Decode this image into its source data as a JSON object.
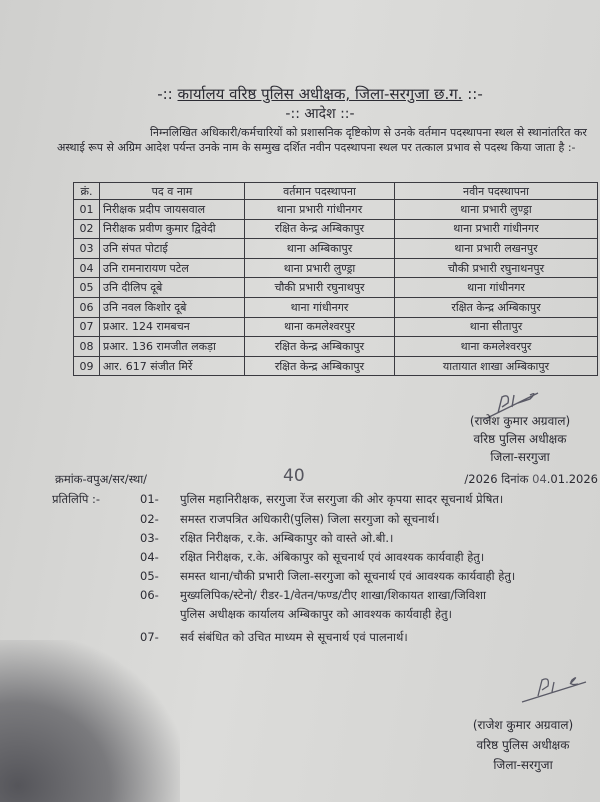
{
  "header": {
    "prefix": "-::",
    "title": "कार्यालय वरिष्ठ पुलिस अधीक्षक, जिला-सरगुजा छ.ग.",
    "suffix": "::-",
    "order_title": "-:: आदेश ::-"
  },
  "intro": [
    "निम्नलिखित अधिकारी/कर्मचारियों को प्रशासनिक दृष्टिकोण से उनके वर्तमान पदस्थापना",
    "स्थल से स्थानांतरित कर अस्थाई रूप से अग्रिम आदेश पर्यन्त उनके नाम के सम्मुख दर्शित नवीन पदस्थापना",
    "स्थल पर तत्काल प्रभाव से पदस्थ किया जाता है :-"
  ],
  "table": {
    "headers": [
      "क्रं.",
      "पद व नाम",
      "वर्तमान पदस्थापना",
      "नवीन पदस्थापना"
    ],
    "rows": [
      [
        "01",
        "निरीक्षक प्रदीप जायसवाल",
        "थाना प्रभारी गांधीनगर",
        "थाना प्रभारी लुण्ड्रा"
      ],
      [
        "02",
        "निरीक्षक प्रवीण कुमार द्विवेदी",
        "रक्षित केन्द्र अम्बिकापुर",
        "थाना प्रभारी गांधीनगर"
      ],
      [
        "03",
        "उनि संपत पोटाई",
        "थाना अम्बिकापुर",
        "थाना प्रभारी लखनपुर"
      ],
      [
        "04",
        "उनि रामनारायण पटेल",
        "थाना प्रभारी लुण्ड्रा",
        "चौकी प्रभारी रघुनाथनपुर"
      ],
      [
        "05",
        "उनि दीलिप दूबे",
        "चौकी प्रभारी रघुनाथपुर",
        "थाना गांधीनगर"
      ],
      [
        "06",
        "उनि नवल किशोर दूबे",
        "थाना गांधीनगर",
        "रक्षित केन्द्र अम्बिकापुर"
      ],
      [
        "07",
        "प्रआर. 124 रामबचन",
        "थाना कमलेश्वरपुर",
        "थाना सीतापुर"
      ],
      [
        "08",
        "प्रआर. 136 रामजीत लकड़ा",
        "रक्षित केन्द्र अम्बिकापुर",
        "थाना कमलेश्वरपुर"
      ],
      [
        "09",
        "आर. 617 संजीत मिर्रे",
        "रक्षित केन्द्र अम्बिकापुर",
        "यातायात शाखा अम्बिकापुर"
      ]
    ]
  },
  "signature1": {
    "name": "(राजेश कुमार अग्रवाल)",
    "designation": "वरिष्ठ पुलिस अधीक्षक",
    "district": "जिला-सरगुजा"
  },
  "reference": {
    "prefix": "क्रमांक-वपुअ/सर/स्था/",
    "number": "40",
    "year": "/2026 दिनांक",
    "day": "04",
    ".rest": "",
    "date_rest": ".01.2026"
  },
  "copy": {
    "label": "प्रतिलिपि :-",
    "items": [
      {
        "no": "01-",
        "text": "पुलिस महानिरीक्षक, सरगुजा रेंज सरगुजा की ओर कृपया सादर सूचनार्थ प्रेषित।"
      },
      {
        "no": "02-",
        "text": "समस्त राजपत्रित अधिकारी(पुलिस) जिला सरगुजा को सूचनार्थ।"
      },
      {
        "no": "03-",
        "text": "रक्षित निरीक्षक, र.के. अम्बिकापुर को वास्ते ओ.बी.।"
      },
      {
        "no": "04-",
        "text": "रक्षित निरीक्षक, र.के. अंबिकापुर को सूचनार्थ एवं आवश्यक कार्यवाही हेतु।"
      },
      {
        "no": "05-",
        "text": "समस्त थाना/चौकी प्रभारी जिला-सरगुजा को सूचनार्थ एवं आवश्यक कार्यवाही हेतु।"
      },
      {
        "no": "06-",
        "text": "मुख्यलिपिक/स्टेनो/ रीडर-1/वेतन/फण्ड/टीए शाखा/शिकायत शाखा/जिविशा",
        "text2": "पुलिस अधीक्षक कार्यालय अम्बिकापुर को आवश्यक कार्यवाही हेतु।"
      },
      {
        "no": "07-",
        "text": "सर्व संबंधित को उचित माध्यम से सूचनार्थ एवं पालनार्थ।"
      }
    ]
  },
  "signature2": {
    "name": "(राजेश कुमार अग्रवाल)",
    "designation": "वरिष्ठ पुलिस अधीक्षक",
    "district": "जिला-सरगुजा"
  }
}
